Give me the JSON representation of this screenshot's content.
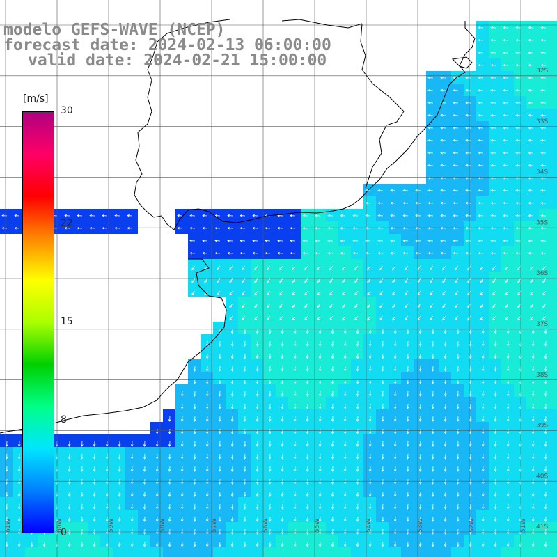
{
  "title": {
    "line1": "modelo GEFS-WAVE (NCEP)",
    "line2": "forecast date: 2024-02-13 06:00:00",
    "line3": "valid date: 2024-02-21 15:00:00"
  },
  "colorbar": {
    "unit": "[m/s]",
    "min": 0,
    "max": 30,
    "ticks": [
      "30",
      "22",
      "15",
      "8",
      "0"
    ],
    "colors": [
      "#0000ff",
      "#0080ff",
      "#00e5ff",
      "#00ff88",
      "#00d000",
      "#aaff00",
      "#ffff00",
      "#ff8800",
      "#ff0000",
      "#ff0066",
      "#b00080"
    ]
  },
  "map": {
    "lat_labels": [
      "32S",
      "33S",
      "34S",
      "35S",
      "36S",
      "37S",
      "38S",
      "39S",
      "40S",
      "41S"
    ],
    "lon_labels": [
      "61W",
      "60W",
      "59W",
      "58W",
      "57W",
      "56W",
      "55W",
      "54W",
      "53W",
      "52W",
      "51W"
    ],
    "colors": {
      "land": "#ffffff",
      "coast": "#000000",
      "grid": "#000000",
      "arrow": "#ffffff"
    }
  }
}
